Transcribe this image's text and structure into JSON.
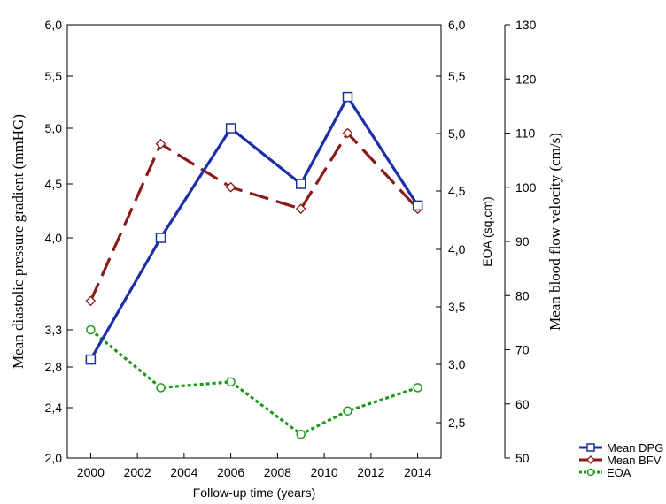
{
  "chart_data": {
    "type": "line",
    "xlabel": "Follow-up time (years)",
    "x_ticks": [
      "2000",
      "2002",
      "2004",
      "2006",
      "2008",
      "2010",
      "2012",
      "2014"
    ],
    "xlim": [
      1999,
      2015
    ],
    "y_left": {
      "label": "Mean diastolic pressure gradient (mmHG)",
      "ticks": [
        "2,0",
        "2,4",
        "2,8",
        "3,3",
        "4,0",
        "4,5",
        "5,0",
        "5,5",
        "6,0"
      ],
      "ylim": [
        2.0,
        6.0
      ]
    },
    "y_mid": {
      "label": "EOA (sq.cm)",
      "ticks": [
        "2,5",
        "3,0",
        "3,5",
        "4,0",
        "4,5",
        "5,0",
        "5,5",
        "6,0"
      ],
      "ylim": [
        2.0,
        6.0
      ]
    },
    "y_right": {
      "label": "Mean blood flow velocity (cm/s)",
      "ticks": [
        "50",
        "60",
        "70",
        "80",
        "90",
        "100",
        "110",
        "120",
        "130"
      ],
      "ylim": [
        50,
        130
      ]
    },
    "x": [
      2000,
      2003,
      2006,
      2009,
      2011,
      2014
    ],
    "series": [
      {
        "name": "Mean DPG",
        "axis": "left",
        "values": [
          2.9,
          4.0,
          5.0,
          4.5,
          5.3,
          4.3
        ],
        "color": "#1a2fa8",
        "style": "solid",
        "marker": "square"
      },
      {
        "name": "Mean BFV",
        "axis": "right",
        "values": [
          79,
          108,
          100,
          96,
          110,
          96
        ],
        "color": "#8b1a1a",
        "style": "dashed",
        "marker": "diamond"
      },
      {
        "name": "EOA",
        "axis": "mid",
        "values": [
          3.3,
          2.8,
          2.85,
          2.4,
          2.6,
          2.8
        ],
        "color": "#1a9a1a",
        "style": "dotted",
        "marker": "circle"
      }
    ],
    "grid": false,
    "legend_position": "bottom-right"
  }
}
